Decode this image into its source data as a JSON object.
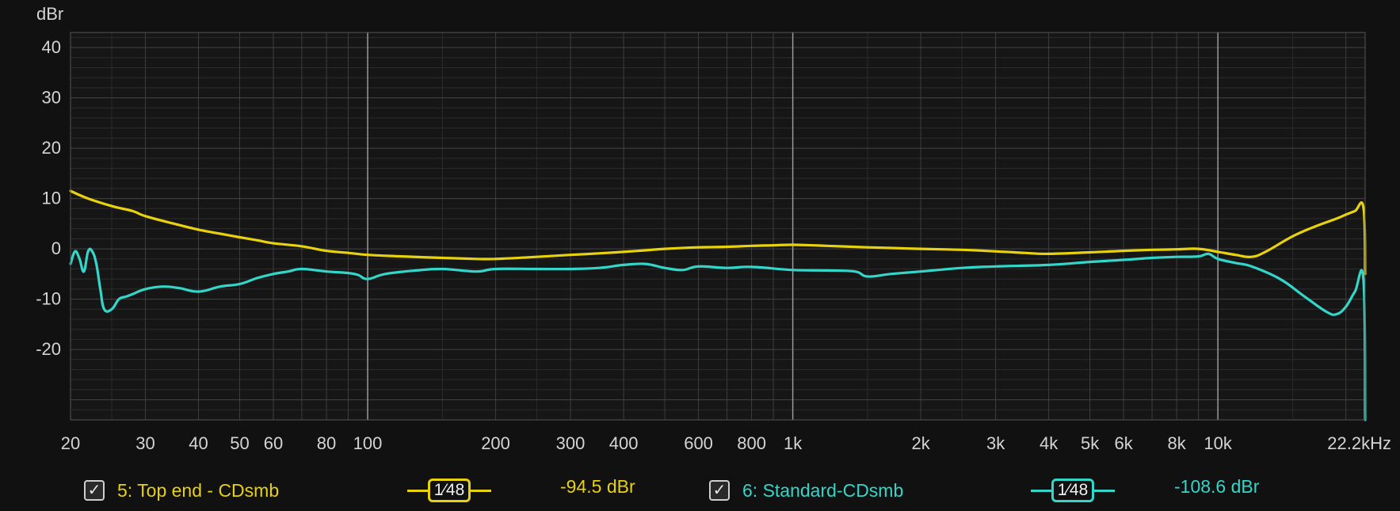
{
  "chart_data": {
    "type": "line",
    "ylabel": "dBr",
    "xunit": "kHz",
    "xscale": "log",
    "xlim": [
      20,
      22200
    ],
    "ylim": [
      -34,
      43
    ],
    "yticks": [
      40,
      30,
      20,
      10,
      0,
      -10,
      -20
    ],
    "xticks": [
      {
        "value": 20,
        "label": "20"
      },
      {
        "value": 30,
        "label": "30"
      },
      {
        "value": 40,
        "label": "40"
      },
      {
        "value": 50,
        "label": "50"
      },
      {
        "value": 60,
        "label": "60"
      },
      {
        "value": 80,
        "label": "80"
      },
      {
        "value": 100,
        "label": "100"
      },
      {
        "value": 200,
        "label": "200"
      },
      {
        "value": 300,
        "label": "300"
      },
      {
        "value": 400,
        "label": "400"
      },
      {
        "value": 600,
        "label": "600"
      },
      {
        "value": 800,
        "label": "800"
      },
      {
        "value": 1000,
        "label": "1k"
      },
      {
        "value": 2000,
        "label": "2k"
      },
      {
        "value": 3000,
        "label": "3k"
      },
      {
        "value": 4000,
        "label": "4k"
      },
      {
        "value": 5000,
        "label": "5k"
      },
      {
        "value": 6000,
        "label": "6k"
      },
      {
        "value": 8000,
        "label": "8k"
      },
      {
        "value": 10000,
        "label": "10k"
      },
      {
        "value": 22200,
        "label": "22.2kHz"
      }
    ],
    "grid": true,
    "series": [
      {
        "name": "5: Top end - CDsmb",
        "color": "#e8d20e",
        "x": [
          20,
          22,
          25,
          28,
          30,
          35,
          40,
          45,
          50,
          55,
          60,
          70,
          80,
          90,
          100,
          120,
          150,
          180,
          200,
          250,
          300,
          350,
          400,
          450,
          500,
          600,
          700,
          800,
          900,
          1000,
          1200,
          1500,
          2000,
          2500,
          3000,
          3500,
          4000,
          5000,
          6000,
          7000,
          8000,
          9000,
          10000,
          11000,
          12000,
          13000,
          15000,
          17000,
          19000,
          20000,
          21000,
          22000,
          22200
        ],
        "y": [
          11.5,
          10,
          8.5,
          7.5,
          6.5,
          5,
          3.8,
          3,
          2.3,
          1.7,
          1.1,
          0.5,
          -0.4,
          -0.8,
          -1.2,
          -1.5,
          -1.8,
          -2,
          -2,
          -1.6,
          -1.2,
          -0.9,
          -0.6,
          -0.3,
          0,
          0.3,
          0.4,
          0.6,
          0.7,
          0.8,
          0.6,
          0.3,
          0,
          -0.2,
          -0.5,
          -0.8,
          -1,
          -0.7,
          -0.4,
          -0.2,
          -0.1,
          0,
          -0.6,
          -1.2,
          -1.6,
          -0.5,
          2.5,
          4.5,
          6,
          6.8,
          7.5,
          8.2,
          -5
        ]
      },
      {
        "name": "6: Standard-CDsmb",
        "color": "#33d6c8",
        "x": [
          20,
          20.5,
          21,
          21.5,
          22,
          22.5,
          23,
          23.5,
          24,
          25,
          26,
          27,
          28,
          30,
          33,
          36,
          40,
          45,
          50,
          55,
          60,
          65,
          70,
          80,
          90,
          95,
          100,
          110,
          130,
          150,
          180,
          200,
          250,
          300,
          350,
          400,
          450,
          500,
          550,
          600,
          700,
          800,
          1000,
          1200,
          1400,
          1500,
          1700,
          2000,
          2500,
          3000,
          4000,
          5000,
          6000,
          7000,
          8000,
          9000,
          9500,
          10000,
          11000,
          12000,
          14000,
          16000,
          18000,
          19000,
          20000,
          21000,
          22000,
          22200
        ],
        "y": [
          -3,
          -0.5,
          -2,
          -4.5,
          -0.5,
          -0.5,
          -3,
          -8,
          -12,
          -12,
          -10,
          -9.5,
          -9,
          -8,
          -7.5,
          -7.8,
          -8.5,
          -7.5,
          -7,
          -5.8,
          -5,
          -4.5,
          -4,
          -4.5,
          -4.8,
          -5.2,
          -6,
          -5,
          -4.3,
          -4,
          -4.5,
          -4,
          -4,
          -4,
          -3.8,
          -3.2,
          -3,
          -3.8,
          -4.2,
          -3.5,
          -3.8,
          -3.6,
          -4.2,
          -4.3,
          -4.5,
          -5.5,
          -5,
          -4.5,
          -3.8,
          -3.5,
          -3.2,
          -2.6,
          -2.2,
          -1.8,
          -1.6,
          -1.5,
          -1,
          -2,
          -2.8,
          -3.5,
          -6,
          -9.5,
          -12.5,
          -13,
          -11.5,
          -8.5,
          -6.2,
          -34
        ]
      }
    ]
  },
  "legend": [
    {
      "checked": "✓",
      "label": "5: Top end - CDsmb",
      "smoothing": "1⁄48",
      "level": "-94.5 dBr",
      "color": "#e8d20e"
    },
    {
      "checked": "✓",
      "label": "6: Standard-CDsmb",
      "smoothing": "1⁄48",
      "level": "-108.6 dBr",
      "color": "#33d6c8"
    }
  ]
}
